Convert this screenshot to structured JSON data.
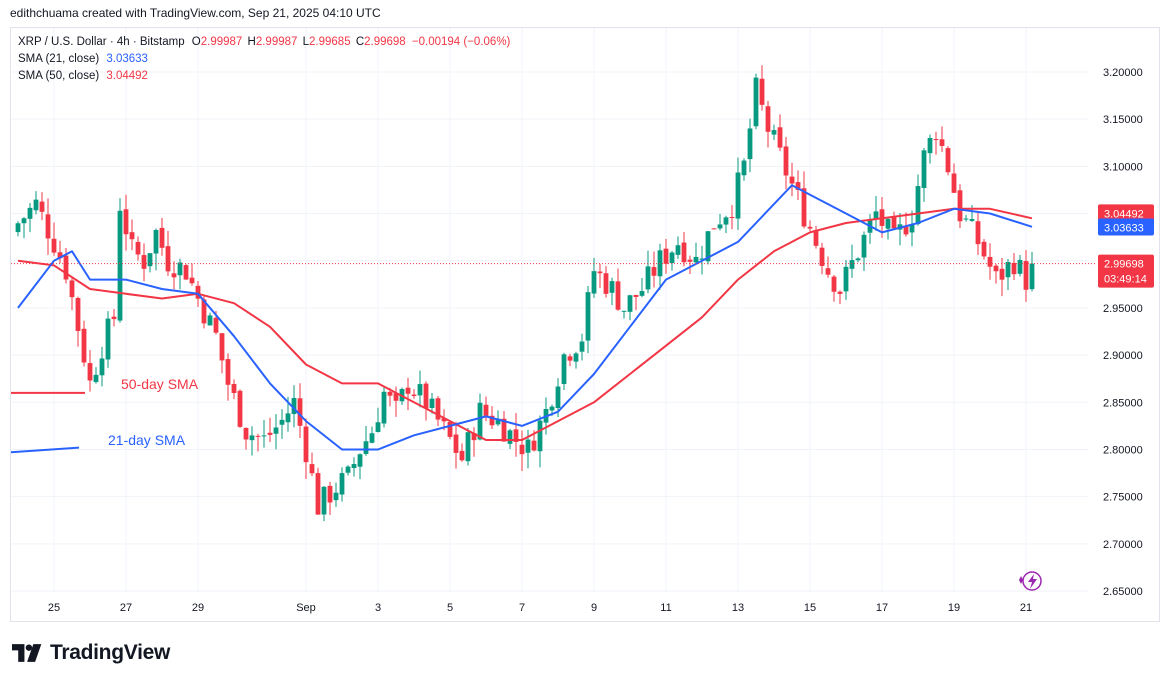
{
  "header": {
    "byline": "edithchuama created with TradingView.com, Sep 21, 2025 04:10 UTC"
  },
  "legend": {
    "symbol": "XRP / U.S. Dollar · 4h · Bitstamp",
    "o_label": "O",
    "o_value": "2.99987",
    "h_label": "H",
    "h_value": "2.99987",
    "l_label": "L",
    "l_value": "2.99685",
    "c_label": "C",
    "c_value": "2.99698",
    "change": "−0.00194 (−0.06%)",
    "sma21_label": "SMA (21, close)",
    "sma21_value": "3.03633",
    "sma50_label": "SMA (50, close)",
    "sma50_value": "3.04492"
  },
  "annotations": {
    "sma50": "50-day SMA",
    "sma21": "21-day SMA"
  },
  "price_badges": {
    "sma50": "3.04492",
    "sma21": "3.03633",
    "last_price": "2.99698",
    "countdown": "03:49:14"
  },
  "brand": {
    "name": "TradingView"
  },
  "colors": {
    "up": "#089981",
    "down": "#f23645",
    "sma21": "#2962ff",
    "sma50": "#f23645"
  },
  "chart_data": {
    "type": "candlestick",
    "symbol": "XRP / U.S. Dollar",
    "interval": "4h",
    "ylim": [
      2.64,
      3.22
    ],
    "y_ticks": [
      "3.20000",
      "3.15000",
      "3.10000",
      "3.05000",
      "3.00000",
      "2.95000",
      "2.90000",
      "2.85000",
      "2.80000",
      "2.75000",
      "2.70000",
      "2.65000"
    ],
    "x_ticks": [
      {
        "label": "25",
        "date": "2025-08-25"
      },
      {
        "label": "27",
        "date": "2025-08-27"
      },
      {
        "label": "29",
        "date": "2025-08-29"
      },
      {
        "label": "Sep",
        "date": "2025-09-01"
      },
      {
        "label": "3",
        "date": "2025-09-03"
      },
      {
        "label": "5",
        "date": "2025-09-05"
      },
      {
        "label": "7",
        "date": "2025-09-07"
      },
      {
        "label": "9",
        "date": "2025-09-09"
      },
      {
        "label": "11",
        "date": "2025-09-11"
      },
      {
        "label": "13",
        "date": "2025-09-13"
      },
      {
        "label": "15",
        "date": "2025-09-15"
      },
      {
        "label": "17",
        "date": "2025-09-17"
      },
      {
        "label": "19",
        "date": "2025-09-19"
      },
      {
        "label": "21",
        "date": "2025-09-21"
      }
    ],
    "close_path": [
      [
        "2025-08-24T00:00",
        3.04
      ],
      [
        "2025-08-24T12:00",
        3.06
      ],
      [
        "2025-08-25T00:00",
        3.02
      ],
      [
        "2025-08-25T08:00",
        2.99
      ],
      [
        "2025-08-25T16:00",
        2.93
      ],
      [
        "2025-08-26T00:00",
        2.87
      ],
      [
        "2025-08-26T08:00",
        2.91
      ],
      [
        "2025-08-26T16:00",
        2.94
      ],
      [
        "2025-08-26T20:00",
        3.06
      ],
      [
        "2025-08-27T04:00",
        3.01
      ],
      [
        "2025-08-27T12:00",
        3.0
      ],
      [
        "2025-08-27T20:00",
        3.03
      ],
      [
        "2025-08-28T04:00",
        3.0
      ],
      [
        "2025-08-28T16:00",
        2.99
      ],
      [
        "2025-08-29T00:00",
        2.96
      ],
      [
        "2025-08-29T12:00",
        2.92
      ],
      [
        "2025-08-29T20:00",
        2.87
      ],
      [
        "2025-08-30T08:00",
        2.82
      ],
      [
        "2025-08-30T20:00",
        2.81
      ],
      [
        "2025-08-31T08:00",
        2.83
      ],
      [
        "2025-08-31T16:00",
        2.85
      ],
      [
        "2025-09-01T00:00",
        2.8
      ],
      [
        "2025-09-01T08:00",
        2.74
      ],
      [
        "2025-09-01T20:00",
        2.76
      ],
      [
        "2025-09-02T04:00",
        2.77
      ],
      [
        "2025-09-02T12:00",
        2.8
      ],
      [
        "2025-09-02T20:00",
        2.82
      ],
      [
        "2025-09-03T04:00",
        2.86
      ],
      [
        "2025-09-03T12:00",
        2.84
      ],
      [
        "2025-09-03T20:00",
        2.87
      ],
      [
        "2025-09-04T08:00",
        2.85
      ],
      [
        "2025-09-04T20:00",
        2.82
      ],
      [
        "2025-09-05T08:00",
        2.79
      ],
      [
        "2025-09-05T20:00",
        2.84
      ],
      [
        "2025-09-06T08:00",
        2.83
      ],
      [
        "2025-09-06T20:00",
        2.81
      ],
      [
        "2025-09-07T04:00",
        2.8
      ],
      [
        "2025-09-07T16:00",
        2.84
      ],
      [
        "2025-09-08T04:00",
        2.9
      ],
      [
        "2025-09-08T16:00",
        2.92
      ],
      [
        "2025-09-09T00:00",
        2.99
      ],
      [
        "2025-09-09T12:00",
        2.97
      ],
      [
        "2025-09-09T20:00",
        2.95
      ],
      [
        "2025-09-10T08:00",
        2.97
      ],
      [
        "2025-09-10T20:00",
        3.0
      ],
      [
        "2025-09-11T08:00",
        3.02
      ],
      [
        "2025-09-11T20:00",
        3.0
      ],
      [
        "2025-09-12T08:00",
        3.04
      ],
      [
        "2025-09-12T20:00",
        3.06
      ],
      [
        "2025-09-13T04:00",
        3.1
      ],
      [
        "2025-09-13T12:00",
        3.18
      ],
      [
        "2025-09-13T20:00",
        3.14
      ],
      [
        "2025-09-14T04:00",
        3.11
      ],
      [
        "2025-09-14T12:00",
        3.08
      ],
      [
        "2025-09-14T20:00",
        3.05
      ],
      [
        "2025-09-15T04:00",
        3.02
      ],
      [
        "2025-09-15T12:00",
        2.99
      ],
      [
        "2025-09-15T20:00",
        2.97
      ],
      [
        "2025-09-16T08:00",
        3.01
      ],
      [
        "2025-09-16T20:00",
        3.05
      ],
      [
        "2025-09-17T08:00",
        3.02
      ],
      [
        "2025-09-17T20:00",
        3.05
      ],
      [
        "2025-09-18T04:00",
        3.11
      ],
      [
        "2025-09-18T12:00",
        3.14
      ],
      [
        "2025-09-18T20:00",
        3.1
      ],
      [
        "2025-09-19T04:00",
        3.05
      ],
      [
        "2025-09-19T16:00",
        3.02
      ],
      [
        "2025-09-20T04:00",
        2.98
      ],
      [
        "2025-09-20T16:00",
        3.0
      ],
      [
        "2025-09-21T00:00",
        2.98
      ],
      [
        "2025-09-21T04:00",
        2.997
      ]
    ],
    "sma21": [
      [
        "2025-08-24T00:00",
        2.95
      ],
      [
        "2025-08-25T00:00",
        3.0
      ],
      [
        "2025-08-25T12:00",
        3.01
      ],
      [
        "2025-08-26T00:00",
        2.98
      ],
      [
        "2025-08-27T00:00",
        2.98
      ],
      [
        "2025-08-28T00:00",
        2.97
      ],
      [
        "2025-08-29T00:00",
        2.965
      ],
      [
        "2025-08-30T00:00",
        2.92
      ],
      [
        "2025-08-31T00:00",
        2.87
      ],
      [
        "2025-09-01T00:00",
        2.83
      ],
      [
        "2025-09-02T00:00",
        2.8
      ],
      [
        "2025-09-03T00:00",
        2.8
      ],
      [
        "2025-09-04T00:00",
        2.815
      ],
      [
        "2025-09-05T00:00",
        2.825
      ],
      [
        "2025-09-06T00:00",
        2.835
      ],
      [
        "2025-09-07T00:00",
        2.825
      ],
      [
        "2025-09-08T00:00",
        2.84
      ],
      [
        "2025-09-09T00:00",
        2.88
      ],
      [
        "2025-09-10T00:00",
        2.93
      ],
      [
        "2025-09-11T00:00",
        2.98
      ],
      [
        "2025-09-12T00:00",
        3.0
      ],
      [
        "2025-09-13T00:00",
        3.02
      ],
      [
        "2025-09-14T00:00",
        3.06
      ],
      [
        "2025-09-14T12:00",
        3.08
      ],
      [
        "2025-09-15T00:00",
        3.07
      ],
      [
        "2025-09-16T00:00",
        3.05
      ],
      [
        "2025-09-17T00:00",
        3.03
      ],
      [
        "2025-09-18T00:00",
        3.04
      ],
      [
        "2025-09-19T00:00",
        3.055
      ],
      [
        "2025-09-20T00:00",
        3.05
      ],
      [
        "2025-09-21T04:00",
        3.036
      ]
    ],
    "sma50": [
      [
        "2025-08-24T00:00",
        3.0
      ],
      [
        "2025-08-25T00:00",
        2.995
      ],
      [
        "2025-08-26T00:00",
        2.97
      ],
      [
        "2025-08-27T00:00",
        2.965
      ],
      [
        "2025-08-28T00:00",
        2.96
      ],
      [
        "2025-08-29T00:00",
        2.965
      ],
      [
        "2025-08-30T00:00",
        2.955
      ],
      [
        "2025-08-31T00:00",
        2.93
      ],
      [
        "2025-09-01T00:00",
        2.89
      ],
      [
        "2025-09-02T00:00",
        2.87
      ],
      [
        "2025-09-03T00:00",
        2.87
      ],
      [
        "2025-09-04T00:00",
        2.85
      ],
      [
        "2025-09-05T00:00",
        2.83
      ],
      [
        "2025-09-06T00:00",
        2.81
      ],
      [
        "2025-09-07T00:00",
        2.81
      ],
      [
        "2025-09-08T00:00",
        2.83
      ],
      [
        "2025-09-09T00:00",
        2.85
      ],
      [
        "2025-09-10T00:00",
        2.88
      ],
      [
        "2025-09-11T00:00",
        2.91
      ],
      [
        "2025-09-12T00:00",
        2.94
      ],
      [
        "2025-09-13T00:00",
        2.98
      ],
      [
        "2025-09-14T00:00",
        3.01
      ],
      [
        "2025-09-15T00:00",
        3.03
      ],
      [
        "2025-09-16T00:00",
        3.04
      ],
      [
        "2025-09-17T00:00",
        3.045
      ],
      [
        "2025-09-18T00:00",
        3.05
      ],
      [
        "2025-09-19T00:00",
        3.055
      ],
      [
        "2025-09-20T00:00",
        3.055
      ],
      [
        "2025-09-21T04:00",
        3.045
      ]
    ],
    "annotation_lines": {
      "sma50_level": 2.86,
      "sma21_level": [
        2.797,
        2.802
      ]
    }
  }
}
